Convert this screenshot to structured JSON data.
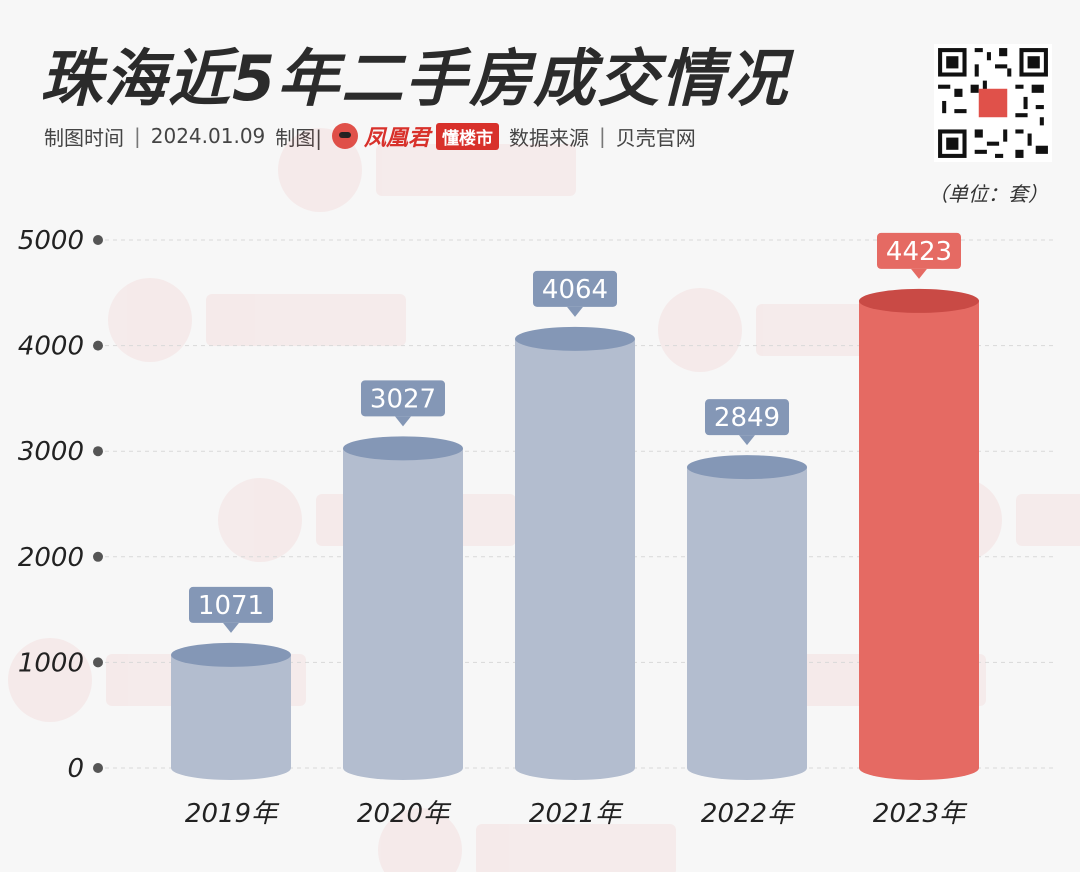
{
  "header": {
    "title": "珠海近5年二手房成交情况",
    "meta": {
      "date_label": "制图时间",
      "separator": "|",
      "date": "2024.01.09",
      "maker_label": "制图|",
      "brand_name": "凤凰君",
      "brand_tag": "懂楼市",
      "source_label": "数据来源",
      "source": "贝壳官网"
    },
    "unit": "（单位：套）"
  },
  "colors": {
    "bar": "#b3bdcf",
    "bar_top": "#8497b6",
    "highlight": "#e56a63",
    "highlight_top": "#c94a45",
    "label_bg_normal": "#8497b6",
    "label_bg_highlight": "#e56a63",
    "axis_dot": "#555555"
  },
  "chart_data": {
    "type": "bar",
    "categories": [
      "2019年",
      "2020年",
      "2021年",
      "2022年",
      "2023年"
    ],
    "values": [
      1071,
      3027,
      4064,
      2849,
      4423
    ],
    "highlight_index": 4,
    "ylim": [
      0,
      5000
    ],
    "yticks": [
      0,
      1000,
      2000,
      3000,
      4000,
      5000
    ],
    "grid": true,
    "data_labels": true
  }
}
